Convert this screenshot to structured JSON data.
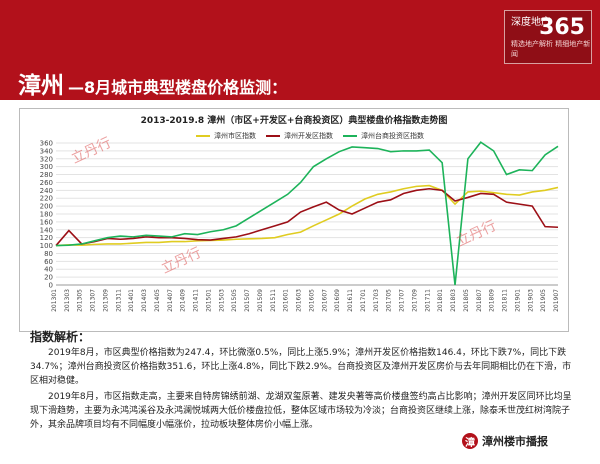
{
  "header": {
    "logo_text": "深度地产",
    "logo_number": "365",
    "logo_sub": "精选地产解析  精细地产新闻"
  },
  "page_title": {
    "city": "漳州",
    "rest": "—8月城市典型楼盘价格监测："
  },
  "watermark": "立丹行",
  "chart": {
    "title": "2013-2019.8 漳州（市区+开发区+台商投资区）典型楼盘价格指数走势图",
    "legend": [
      {
        "name": "漳州市区指数",
        "color": "#e0cc21"
      },
      {
        "name": "漳州开发区指数",
        "color": "#9c0f16"
      },
      {
        "name": "漳州台商投资区指数",
        "color": "#1db35a"
      }
    ]
  },
  "chart_data": {
    "type": "line",
    "y_ticks": [
      0,
      20,
      40,
      60,
      80,
      100,
      120,
      140,
      160,
      180,
      200,
      220,
      240,
      260,
      280,
      300,
      320,
      340,
      360
    ],
    "ylim": [
      0,
      360
    ],
    "x_tick_labels": [
      "201301",
      "201303",
      "201305",
      "201307",
      "201309",
      "201311",
      "201401",
      "201403",
      "201405",
      "201407",
      "201409",
      "201411",
      "201501",
      "201503",
      "201505",
      "201507",
      "201509",
      "201511",
      "201601",
      "201603",
      "201605",
      "201607",
      "201609",
      "201611",
      "201701",
      "201703",
      "201705",
      "201707",
      "201709",
      "201711",
      "201801",
      "201803",
      "201805",
      "201807",
      "201809",
      "201811",
      "201901",
      "201903",
      "201905",
      "201907"
    ],
    "series": [
      {
        "name": "漳州市区指数",
        "values": [
          100,
          102,
          101,
          103,
          104,
          104,
          106,
          108,
          108,
          110,
          110,
          112,
          113,
          114,
          116,
          117,
          118,
          120,
          128,
          134,
          150,
          165,
          180,
          200,
          218,
          230,
          236,
          244,
          250,
          252,
          240,
          205,
          236,
          238,
          234,
          230,
          228,
          236,
          240,
          247.4
        ]
      },
      {
        "name": "漳州开发区指数",
        "values": [
          100,
          138,
          104,
          110,
          118,
          116,
          118,
          122,
          120,
          120,
          118,
          115,
          114,
          118,
          122,
          130,
          140,
          150,
          160,
          185,
          198,
          210,
          190,
          180,
          195,
          210,
          216,
          232,
          240,
          244,
          240,
          213,
          222,
          232,
          230,
          210,
          205,
          200,
          148,
          146.4
        ]
      },
      {
        "name": "漳州台商投资区指数",
        "values": [
          100,
          101,
          104,
          112,
          120,
          124,
          122,
          126,
          124,
          122,
          130,
          128,
          135,
          140,
          150,
          170,
          190,
          210,
          230,
          260,
          300,
          320,
          338,
          350,
          348,
          346,
          338,
          340,
          340,
          342,
          310,
          0,
          320,
          362,
          340,
          280,
          292,
          290,
          330,
          351.6
        ]
      }
    ]
  },
  "analysis": {
    "heading": "指数解析：",
    "p1": "2019年8月，市区典型价格指数为247.4，环比微涨0.5%，同比上涨5.9%；漳州开发区价格指数146.4，环比下跌7%，同比下跌34.7%；漳州台商投资区价格指数351.6，环比上涨4.8%，同比下跌2.9%。台商投资区及漳州开发区房价与去年同期相比仍在下滑，市区相对稳健。",
    "p2": "2019年8月，市区指数走高，主要来自特房锦绣前湖、龙湖双玺原著、建发央著等高价楼盘签约高占比影响；漳州开发区同环比均呈现下滑趋势，主要为永鸿鸿溪谷及永鸿澜悦城两大低价楼盘拉低，整体区域市场较为冷淡；台商投资区继续上涨，除泰禾世茂红树湾院子外，其余品牌项目均有不同幅度小幅涨价，拉动板块整体房价小幅上涨。"
  },
  "brand": {
    "badge": "漳",
    "name": "漳州楼市播报"
  }
}
